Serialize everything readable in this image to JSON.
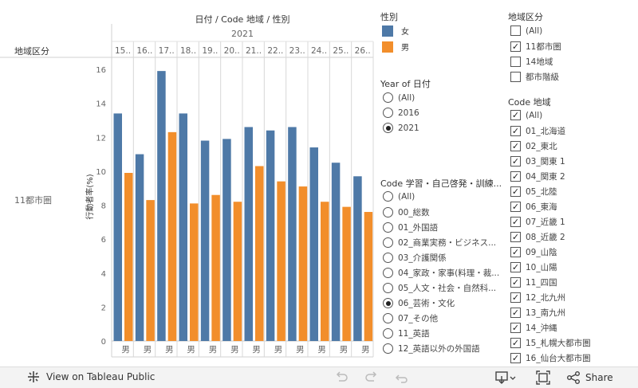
{
  "header": {
    "title": "日付 / Code 地域 / 性別",
    "year": "2021",
    "row_dim_label": "地域区分",
    "row_value": "11都市圏",
    "y_axis_title": "行動者率(%)"
  },
  "chart_data": {
    "type": "bar",
    "categories": [
      "15..",
      "16..",
      "17..",
      "18..",
      "19..",
      "20..",
      "21..",
      "22..",
      "23..",
      "24..",
      "25..",
      "26.."
    ],
    "x_footer_label": "男",
    "series": [
      {
        "name": "女",
        "color": "#4e79a7",
        "values": [
          13.4,
          11.0,
          15.9,
          13.4,
          11.8,
          11.9,
          12.6,
          12.4,
          12.6,
          11.4,
          10.5,
          9.7
        ]
      },
      {
        "name": "男",
        "color": "#f28e2b",
        "values": [
          9.9,
          8.3,
          12.3,
          8.1,
          8.6,
          8.2,
          10.3,
          9.4,
          9.1,
          8.2,
          7.9,
          7.6
        ]
      }
    ],
    "y_ticks": [
      "0",
      "2",
      "4",
      "6",
      "8",
      "10",
      "12",
      "14",
      "16"
    ],
    "ylim": [
      0,
      16.5
    ],
    "ylabel": "行動者率(%)"
  },
  "legend": {
    "title": "性別",
    "items": [
      {
        "label": "女",
        "color": "#4e79a7"
      },
      {
        "label": "男",
        "color": "#f28e2b"
      }
    ]
  },
  "year_filter": {
    "title": "Year of 日付",
    "options": [
      {
        "label": "(All)",
        "selected": false
      },
      {
        "label": "2016",
        "selected": false
      },
      {
        "label": "2021",
        "selected": true
      }
    ]
  },
  "activity_filter": {
    "title": "Code 学習・自己啓発・訓練...",
    "options": [
      {
        "label": "(All)",
        "selected": false
      },
      {
        "label": "00_総数",
        "selected": false
      },
      {
        "label": "01_外国語",
        "selected": false
      },
      {
        "label": "02_商業実務・ビジネス...",
        "selected": false
      },
      {
        "label": "03_介護関係",
        "selected": false
      },
      {
        "label": "04_家政・家事(料理・裁...",
        "selected": false
      },
      {
        "label": "05_人文・社会・自然科...",
        "selected": false
      },
      {
        "label": "06_芸術・文化",
        "selected": true
      },
      {
        "label": "07_その他",
        "selected": false
      },
      {
        "label": "11_英語",
        "selected": false
      },
      {
        "label": "12_英語以外の外国語",
        "selected": false
      }
    ]
  },
  "region_type_filter": {
    "title": "地域区分",
    "options": [
      {
        "label": "(All)",
        "checked": false
      },
      {
        "label": "11都市圏",
        "checked": true
      },
      {
        "label": "14地域",
        "checked": false
      },
      {
        "label": "都市階級",
        "checked": false
      }
    ]
  },
  "region_code_filter": {
    "title": "Code 地域",
    "options": [
      {
        "label": "(All)",
        "checked": true
      },
      {
        "label": "01_北海道",
        "checked": true
      },
      {
        "label": "02_東北",
        "checked": true
      },
      {
        "label": "03_関東 1",
        "checked": true
      },
      {
        "label": "04_関東 2",
        "checked": true
      },
      {
        "label": "05_北陸",
        "checked": true
      },
      {
        "label": "06_東海",
        "checked": true
      },
      {
        "label": "07_近畿 1",
        "checked": true
      },
      {
        "label": "08_近畿 2",
        "checked": true
      },
      {
        "label": "09_山陰",
        "checked": true
      },
      {
        "label": "10_山陽",
        "checked": true
      },
      {
        "label": "11_四国",
        "checked": true
      },
      {
        "label": "12_北九州",
        "checked": true
      },
      {
        "label": "13_南九州",
        "checked": true
      },
      {
        "label": "14_沖縄",
        "checked": true
      },
      {
        "label": "15_札幌大都市圏",
        "checked": true
      },
      {
        "label": "16_仙台大都市圏",
        "checked": true
      }
    ]
  },
  "toolbar": {
    "view_public": "View on Tableau Public",
    "share": "Share",
    "icons": [
      "undo-icon",
      "redo-icon",
      "revert-icon",
      "download-icon",
      "fullscreen-icon",
      "share-icon"
    ]
  }
}
